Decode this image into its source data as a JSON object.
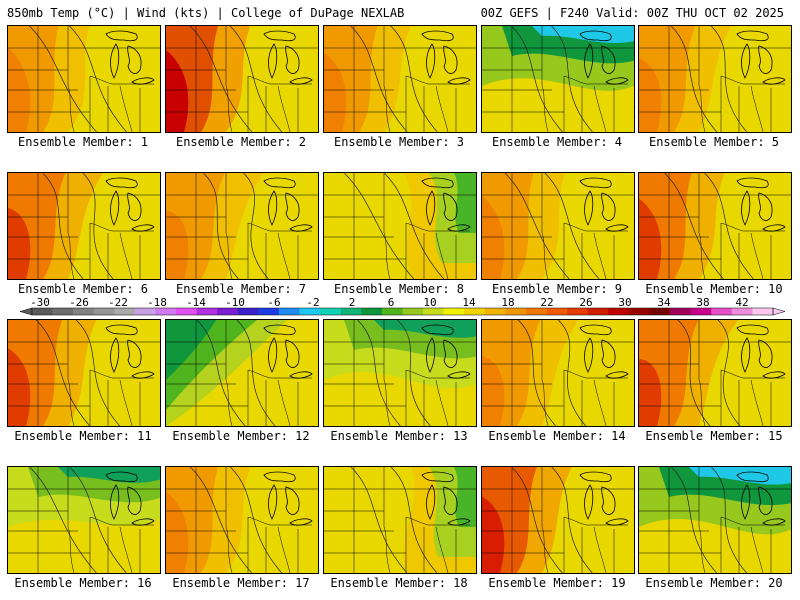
{
  "header": {
    "left": "850mb Temp (°C) | Wind (kts) | College of DuPage NEXLAB",
    "right": "00Z GEFS | F240 Valid: 00Z THU OCT 02 2025"
  },
  "caption_prefix": "Ensemble Member: ",
  "members": [
    {
      "id": "1",
      "label": "Ensemble Member: 1",
      "palette": "warm_w"
    },
    {
      "id": "2",
      "label": "Ensemble Member: 2",
      "palette": "hot_sw"
    },
    {
      "id": "3",
      "label": "Ensemble Member: 3",
      "palette": "warm_w"
    },
    {
      "id": "4",
      "label": "Ensemble Member: 4",
      "palette": "cold_n"
    },
    {
      "id": "5",
      "label": "Ensemble Member: 5",
      "palette": "warm_w"
    },
    {
      "id": "6",
      "label": "Ensemble Member: 6",
      "palette": "hot_w"
    },
    {
      "id": "7",
      "label": "Ensemble Member: 7",
      "palette": "warm_w"
    },
    {
      "id": "8",
      "label": "Ensemble Member: 8",
      "palette": "cool_e"
    },
    {
      "id": "9",
      "label": "Ensemble Member: 9",
      "palette": "warm_w"
    },
    {
      "id": "10",
      "label": "Ensemble Member: 10",
      "palette": "hot_w"
    },
    {
      "id": "11",
      "label": "Ensemble Member: 11",
      "palette": "hot_w"
    },
    {
      "id": "12",
      "label": "Ensemble Member: 12",
      "palette": "green_nw"
    },
    {
      "id": "13",
      "label": "Ensemble Member: 13",
      "palette": "cool_n"
    },
    {
      "id": "14",
      "label": "Ensemble Member: 14",
      "palette": "warm_w"
    },
    {
      "id": "15",
      "label": "Ensemble Member: 15",
      "palette": "hot_w"
    },
    {
      "id": "16",
      "label": "Ensemble Member: 16",
      "palette": "cool_n"
    },
    {
      "id": "17",
      "label": "Ensemble Member: 17",
      "palette": "warm_w"
    },
    {
      "id": "18",
      "label": "Ensemble Member: 18",
      "palette": "cool_e"
    },
    {
      "id": "19",
      "label": "Ensemble Member: 19",
      "palette": "hot_nw"
    },
    {
      "id": "20",
      "label": "Ensemble Member: 20",
      "palette": "cold_n"
    }
  ],
  "colorbar": {
    "tick_labels": [
      "-30",
      "-26",
      "-22",
      "-18",
      "-14",
      "-10",
      "-6",
      "-2",
      "2",
      "6",
      "10",
      "14",
      "18",
      "22",
      "26",
      "30",
      "34",
      "38",
      "42"
    ],
    "colors": [
      "#5a5a5a",
      "#6e6e6e",
      "#828282",
      "#969696",
      "#aaaaaa",
      "#c8a0e6",
      "#d278f0",
      "#e050f0",
      "#b030e0",
      "#7a1ed2",
      "#3a20c8",
      "#1e3ce6",
      "#1e8cf0",
      "#1ec8f0",
      "#10d2b4",
      "#10b478",
      "#10963c",
      "#50b41e",
      "#96c81e",
      "#c8dc1e",
      "#f0f000",
      "#f0d200",
      "#f0b400",
      "#f09600",
      "#f07800",
      "#f05a00",
      "#e63c00",
      "#d21e00",
      "#be0000",
      "#960000",
      "#780000",
      "#a0005a",
      "#c8008c",
      "#e650c8",
      "#f08cdc",
      "#f8c8f0"
    ]
  }
}
